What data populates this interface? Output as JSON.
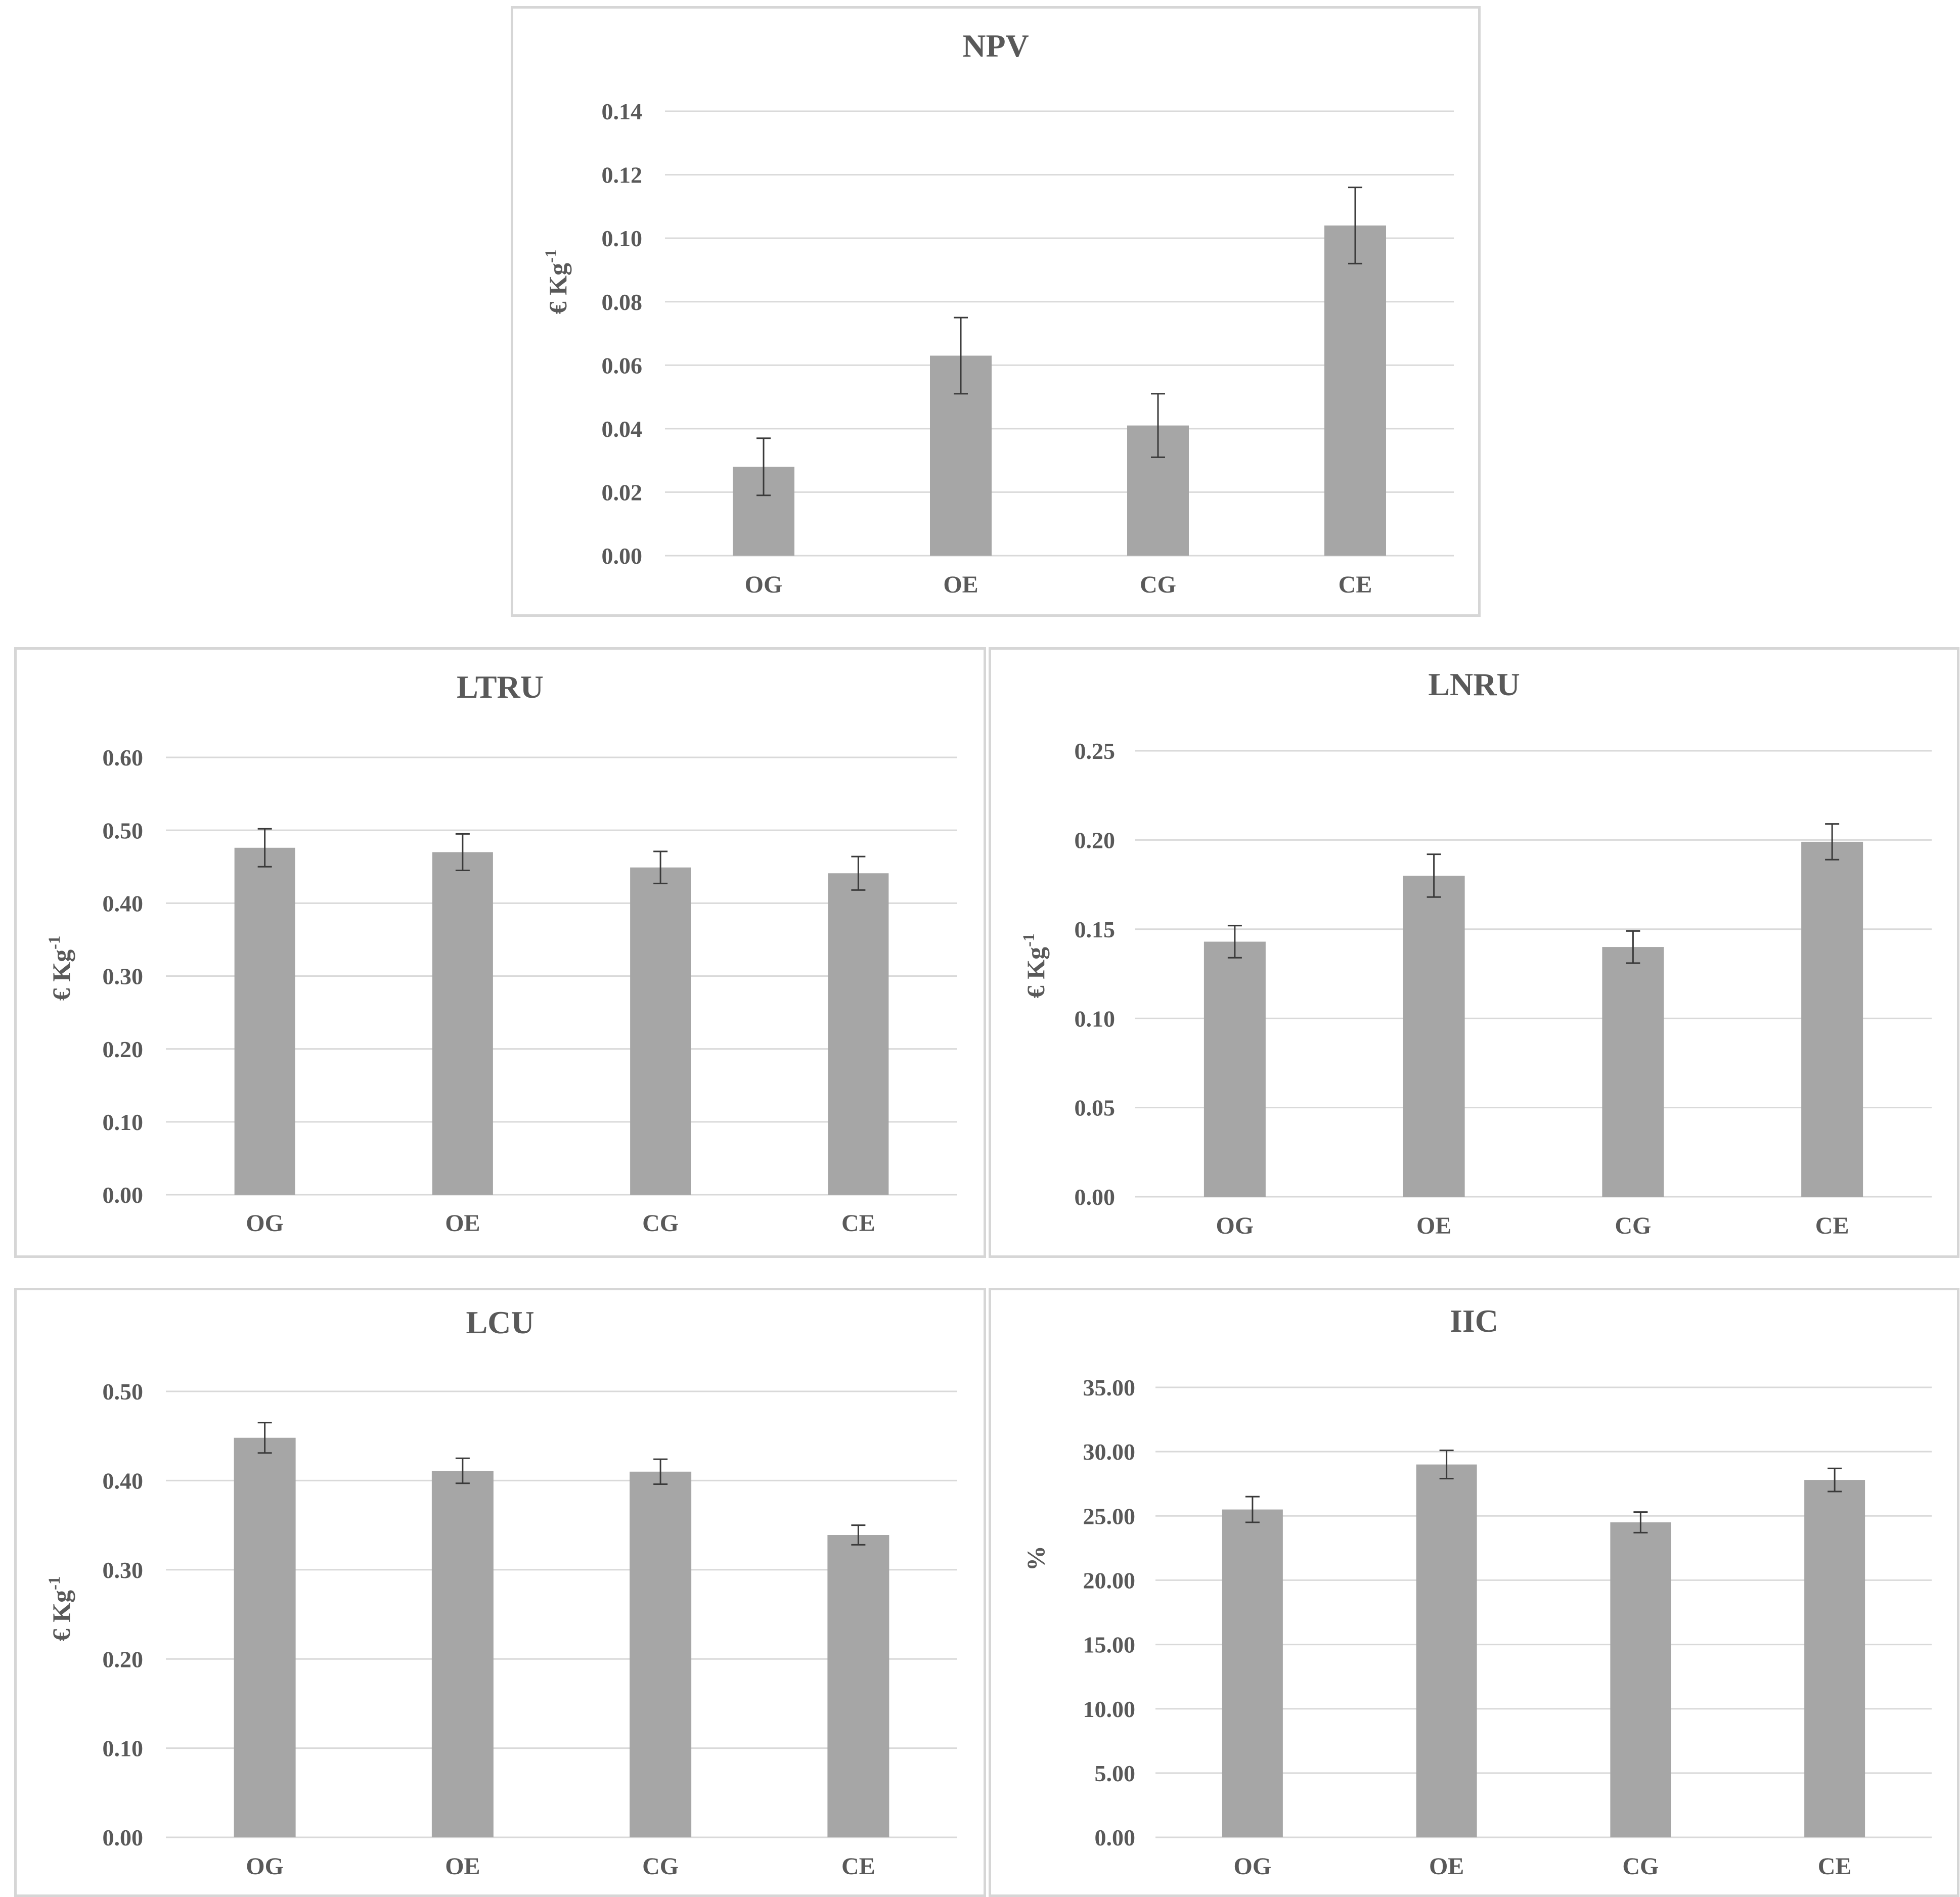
{
  "chart_data": [
    {
      "type": "bar",
      "title": "NPV",
      "ylabel": "€ Kg",
      "ylabel_sup": "-1",
      "categories": [
        "OG",
        "OE",
        "CG",
        "CE"
      ],
      "values": [
        0.028,
        0.063,
        0.041,
        0.104
      ],
      "errors": [
        0.009,
        0.012,
        0.01,
        0.012
      ],
      "ylim": [
        0,
        0.14
      ],
      "yticks": [
        "0.00",
        "0.02",
        "0.04",
        "0.06",
        "0.08",
        "0.10",
        "0.12",
        "0.14"
      ],
      "grid": true,
      "legend": "none"
    },
    {
      "type": "bar",
      "title": "LTRU",
      "ylabel": "€ Kg",
      "ylabel_sup": "-1",
      "categories": [
        "OG",
        "OE",
        "CG",
        "CE"
      ],
      "values": [
        0.476,
        0.47,
        0.449,
        0.441
      ],
      "errors": [
        0.026,
        0.025,
        0.022,
        0.023
      ],
      "ylim": [
        0,
        0.6
      ],
      "yticks": [
        "0.00",
        "0.10",
        "0.20",
        "0.30",
        "0.40",
        "0.50",
        "0.60"
      ],
      "grid": true,
      "legend": "none"
    },
    {
      "type": "bar",
      "title": "LNRU",
      "ylabel": "€ Kg",
      "ylabel_sup": "-1",
      "categories": [
        "OG",
        "OE",
        "CG",
        "CE"
      ],
      "values": [
        0.143,
        0.18,
        0.14,
        0.199
      ],
      "errors": [
        0.009,
        0.012,
        0.009,
        0.01
      ],
      "ylim": [
        0,
        0.25
      ],
      "yticks": [
        "0.00",
        "0.05",
        "0.10",
        "0.15",
        "0.20",
        "0.25"
      ],
      "grid": true,
      "legend": "none"
    },
    {
      "type": "bar",
      "title": "LCU",
      "ylabel": "€ Kg",
      "ylabel_sup": "-1",
      "categories": [
        "OG",
        "OE",
        "CG",
        "CE"
      ],
      "values": [
        0.448,
        0.411,
        0.41,
        0.339
      ],
      "errors": [
        0.017,
        0.014,
        0.014,
        0.011
      ],
      "ylim": [
        0,
        0.5
      ],
      "yticks": [
        "0.00",
        "0.10",
        "0.20",
        "0.30",
        "0.40",
        "0.50"
      ],
      "grid": true,
      "legend": "none"
    },
    {
      "type": "bar",
      "title": "IIC",
      "ylabel": "%",
      "ylabel_sup": "",
      "categories": [
        "OG",
        "OE",
        "CG",
        "CE"
      ],
      "values": [
        25.5,
        29.0,
        24.5,
        27.8
      ],
      "errors": [
        1.0,
        1.1,
        0.8,
        0.9
      ],
      "ylim": [
        0,
        35
      ],
      "yticks": [
        "0.00",
        "5.00",
        "10.00",
        "15.00",
        "20.00",
        "25.00",
        "30.00",
        "35.00"
      ],
      "grid": true,
      "legend": "none"
    }
  ],
  "colors": {
    "bar": "#a6a6a6",
    "grid": "#d9d9d9",
    "text": "#595959",
    "error_bar": "#3a3a3a",
    "border": "#d6d6d6"
  }
}
